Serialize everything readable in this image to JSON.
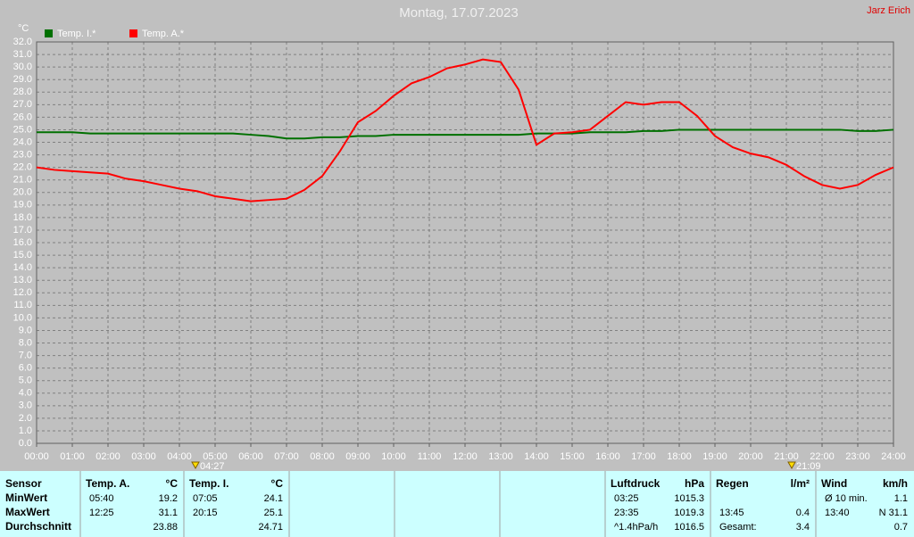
{
  "chart_data": {
    "type": "line",
    "title": "Montag, 17.07.2023",
    "author": "Jarz Erich",
    "ylabel": "°C",
    "grid": true,
    "x": [
      0,
      0.5,
      1,
      1.5,
      2,
      2.5,
      3,
      3.5,
      4,
      4.5,
      5,
      5.5,
      6,
      6.5,
      7,
      7.5,
      8,
      8.5,
      9,
      9.5,
      10,
      10.5,
      11,
      11.5,
      12,
      12.5,
      13,
      13.5,
      14,
      14.5,
      15,
      15.5,
      16,
      16.5,
      17,
      17.5,
      18,
      18.5,
      19,
      19.5,
      20,
      20.5,
      21,
      21.5,
      22,
      22.5,
      23,
      23.5,
      24
    ],
    "series": [
      {
        "name": "Temp. I.*",
        "color": "#007000",
        "values": [
          24.8,
          24.8,
          24.8,
          24.7,
          24.7,
          24.7,
          24.7,
          24.7,
          24.7,
          24.7,
          24.7,
          24.7,
          24.6,
          24.5,
          24.3,
          24.3,
          24.4,
          24.4,
          24.5,
          24.5,
          24.6,
          24.6,
          24.6,
          24.6,
          24.6,
          24.6,
          24.6,
          24.6,
          24.7,
          24.7,
          24.7,
          24.8,
          24.8,
          24.8,
          24.9,
          24.9,
          25.0,
          25.0,
          25.0,
          25.0,
          25.0,
          25.0,
          25.0,
          25.0,
          25.0,
          25.0,
          24.9,
          24.9,
          25.0
        ]
      },
      {
        "name": "Temp. A.*",
        "color": "#ff0000",
        "values": [
          22.0,
          21.8,
          21.7,
          21.6,
          21.5,
          21.1,
          20.9,
          20.6,
          20.3,
          20.1,
          19.7,
          19.5,
          19.3,
          19.4,
          19.5,
          20.2,
          21.3,
          23.3,
          25.6,
          26.5,
          27.7,
          28.7,
          29.2,
          29.9,
          30.2,
          30.6,
          30.4,
          28.2,
          23.8,
          24.7,
          24.8,
          25.0,
          26.1,
          27.2,
          27.0,
          27.2,
          27.2,
          26.1,
          24.5,
          23.6,
          23.1,
          22.8,
          22.2,
          21.3,
          20.6,
          20.3,
          20.6,
          21.4,
          22.0
        ]
      }
    ],
    "xlim": [
      0,
      24
    ],
    "ylim": [
      0,
      32
    ],
    "xticks": [
      {
        "value": 0,
        "label": "00:00"
      },
      {
        "value": 1,
        "label": "01:00"
      },
      {
        "value": 2,
        "label": "02:00"
      },
      {
        "value": 3,
        "label": "03:00"
      },
      {
        "value": 4,
        "label": "04:00"
      },
      {
        "value": 5,
        "label": "05:00"
      },
      {
        "value": 6,
        "label": "06:00"
      },
      {
        "value": 7,
        "label": "07:00"
      },
      {
        "value": 8,
        "label": "08:00"
      },
      {
        "value": 9,
        "label": "09:00"
      },
      {
        "value": 10,
        "label": "10:00"
      },
      {
        "value": 11,
        "label": "11:00"
      },
      {
        "value": 12,
        "label": "12:00"
      },
      {
        "value": 13,
        "label": "13:00"
      },
      {
        "value": 14,
        "label": "14:00"
      },
      {
        "value": 15,
        "label": "15:00"
      },
      {
        "value": 16,
        "label": "16:00"
      },
      {
        "value": 17,
        "label": "17:00"
      },
      {
        "value": 18,
        "label": "18:00"
      },
      {
        "value": 19,
        "label": "19:00"
      },
      {
        "value": 20,
        "label": "20:00"
      },
      {
        "value": 21,
        "label": "21:00"
      },
      {
        "value": 22,
        "label": "22:00"
      },
      {
        "value": 23,
        "label": "23:00"
      },
      {
        "value": 24,
        "label": "24:00"
      }
    ],
    "yticks": [
      {
        "value": 0,
        "label": "0.0"
      },
      {
        "value": 1,
        "label": "1.0"
      },
      {
        "value": 2,
        "label": "2.0"
      },
      {
        "value": 3,
        "label": "3.0"
      },
      {
        "value": 4,
        "label": "4.0"
      },
      {
        "value": 5,
        "label": "5.0"
      },
      {
        "value": 6,
        "label": "6.0"
      },
      {
        "value": 7,
        "label": "7.0"
      },
      {
        "value": 8,
        "label": "8.0"
      },
      {
        "value": 9,
        "label": "9.0"
      },
      {
        "value": 10,
        "label": "10.0"
      },
      {
        "value": 11,
        "label": "11.0"
      },
      {
        "value": 12,
        "label": "12.0"
      },
      {
        "value": 13,
        "label": "13.0"
      },
      {
        "value": 14,
        "label": "14.0"
      },
      {
        "value": 15,
        "label": "15.0"
      },
      {
        "value": 16,
        "label": "16.0"
      },
      {
        "value": 17,
        "label": "17.0"
      },
      {
        "value": 18,
        "label": "18.0"
      },
      {
        "value": 19,
        "label": "19.0"
      },
      {
        "value": 20,
        "label": "20.0"
      },
      {
        "value": 21,
        "label": "21.0"
      },
      {
        "value": 22,
        "label": "22.0"
      },
      {
        "value": 23,
        "label": "23.0"
      },
      {
        "value": 24,
        "label": "24.0"
      },
      {
        "value": 25,
        "label": "25.0"
      },
      {
        "value": 26,
        "label": "26.0"
      },
      {
        "value": 27,
        "label": "27.0"
      },
      {
        "value": 28,
        "label": "28.0"
      },
      {
        "value": 29,
        "label": "29.0"
      },
      {
        "value": 30,
        "label": "30.0"
      },
      {
        "value": 31,
        "label": "31.0"
      },
      {
        "value": 32,
        "label": "32.0"
      }
    ],
    "annotations": [
      {
        "x": 4.45,
        "label": "04:27"
      },
      {
        "x": 21.15,
        "label": "21:09"
      }
    ]
  },
  "summary": {
    "row_labels": [
      "Sensor",
      "MinWert",
      "MaxWert",
      "Durchschnitt"
    ],
    "blocks": [
      {
        "header": [
          "Temp. A.",
          "°C"
        ],
        "rows": [
          [
            "05:40",
            "19.2"
          ],
          [
            "12:25",
            "31.1"
          ],
          [
            null,
            "23.88"
          ]
        ]
      },
      {
        "header": [
          "Temp. I.",
          "°C"
        ],
        "rows": [
          [
            "07:05",
            "24.1"
          ],
          [
            "20:15",
            "25.1"
          ],
          [
            null,
            "24.71"
          ]
        ]
      },
      {
        "header": [
          null,
          null
        ],
        "rows": []
      },
      {
        "header": [
          null,
          null
        ],
        "rows": []
      },
      {
        "header": [
          null,
          null
        ],
        "rows": []
      },
      {
        "header": [
          "Luftdruck",
          "hPa"
        ],
        "rows": [
          [
            "03:25",
            "1015.3"
          ],
          [
            "23:35",
            "1019.3"
          ],
          [
            "^1.4hPa/h",
            "1016.5"
          ]
        ]
      },
      {
        "header": [
          "Regen",
          "l/m²"
        ],
        "rows": [
          [
            null,
            null
          ],
          [
            "13:45",
            "0.4"
          ],
          [
            "Gesamt:",
            "3.4"
          ]
        ]
      },
      {
        "header": [
          "Wind",
          "km/h"
        ],
        "rows": [
          [
            "Ø 10 min.",
            "1.1"
          ],
          [
            "13:40",
            "N 31.1"
          ],
          [
            null,
            "0.7"
          ]
        ]
      }
    ]
  }
}
